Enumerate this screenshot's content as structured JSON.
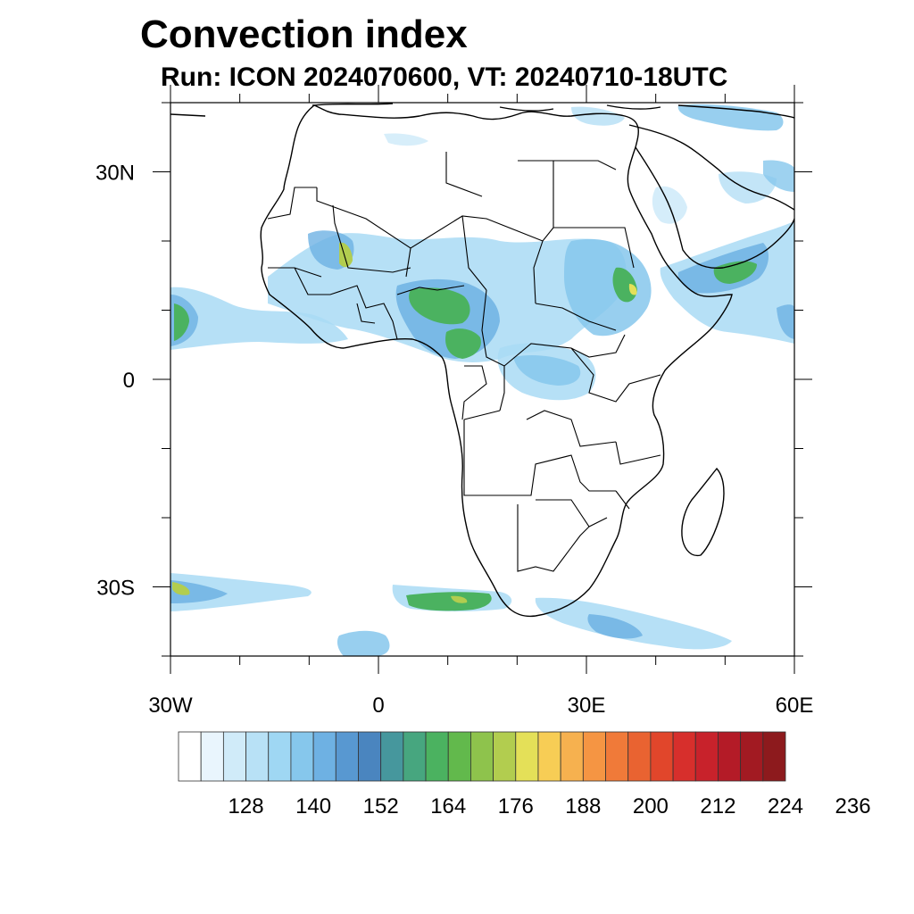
{
  "header": {
    "title": "Convection index",
    "subtitle": "Run: ICON 2024070600,  VT: 20240710-18UTC"
  },
  "map": {
    "lon_range": [
      -30,
      60
    ],
    "lat_range": [
      -40,
      40
    ],
    "lat_ticks": [
      {
        "value": 30,
        "label": "30N"
      },
      {
        "value": 0,
        "label": "0"
      },
      {
        "value": -30,
        "label": "30S"
      }
    ],
    "lon_ticks": [
      {
        "value": -30,
        "label": "30W"
      },
      {
        "value": 0,
        "label": "0"
      },
      {
        "value": 30,
        "label": "30E"
      },
      {
        "value": 60,
        "label": "60E"
      }
    ],
    "colors": {
      "coastline": "#000000",
      "land_background": "#ffffff"
    }
  },
  "colorbar": {
    "labels": [
      "128",
      "140",
      "152",
      "164",
      "176",
      "188",
      "200",
      "212",
      "224",
      "236"
    ],
    "colors": [
      "#ffffff",
      "#e9f5fd",
      "#d0ebf9",
      "#b8e1f6",
      "#9fd7f3",
      "#86c7ec",
      "#6eb1e3",
      "#5898d1",
      "#4a85bf",
      "#46979d",
      "#47a67f",
      "#4bb260",
      "#62b94c",
      "#8ec34c",
      "#b2cd4f",
      "#e4e058",
      "#f7cd55",
      "#f6b14f",
      "#f59543",
      "#f07a39",
      "#e96331",
      "#e1462b",
      "#d72f2c",
      "#c8222b",
      "#b41b27",
      "#a21a22",
      "#8d1a1d"
    ]
  }
}
